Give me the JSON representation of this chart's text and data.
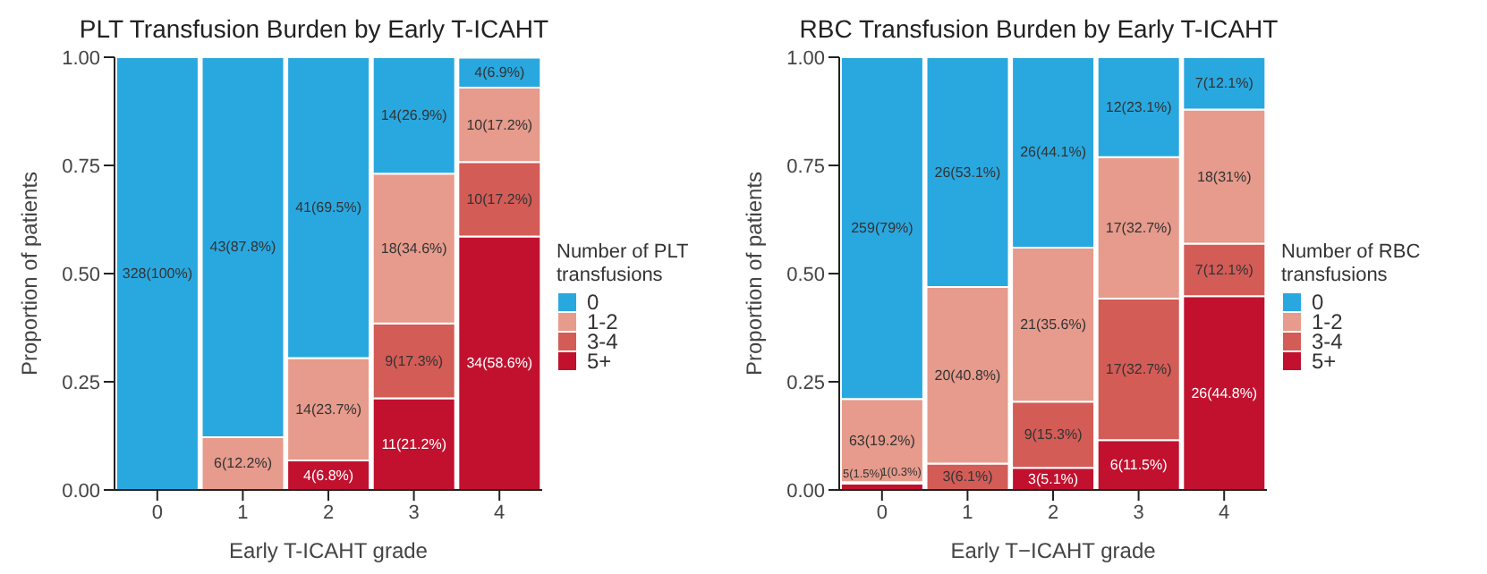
{
  "chart_data": [
    {
      "type": "bar",
      "title": "PLT Transfusion Burden by Early T-ICAHT",
      "xlabel": "Early T-ICAHT grade",
      "ylabel": "Proportion of patients",
      "legend_title": "Number of PLT transfusions",
      "categories": [
        "0",
        "1",
        "2",
        "3",
        "4"
      ],
      "stacked": true,
      "ylim": [
        0,
        1
      ],
      "yticks": [
        {
          "value": 0,
          "label": "0.00"
        },
        {
          "value": 0.25,
          "label": "0.25"
        },
        {
          "value": 0.5,
          "label": "0.50"
        },
        {
          "value": 0.75,
          "label": "0.75"
        },
        {
          "value": 1,
          "label": "1.00"
        }
      ],
      "grid": false,
      "legend": "right",
      "series": [
        {
          "name": "5+",
          "color": "#c1112f",
          "values": [
            0,
            0,
            0.068,
            0.212,
            0.586
          ],
          "value_labels": [
            null,
            null,
            "4(6.8%)",
            "11(21.2%)",
            "34(58.6%)"
          ]
        },
        {
          "name": "3-4",
          "color": "#d35c57",
          "values": [
            0,
            0,
            0,
            0.173,
            0.172
          ],
          "value_labels": [
            null,
            null,
            null,
            "9(17.3%)",
            "10(17.2%)"
          ]
        },
        {
          "name": "1-2",
          "color": "#e69b8c",
          "values": [
            0,
            0.122,
            0.237,
            0.346,
            0.172
          ],
          "value_labels": [
            null,
            "6(12.2%)",
            "14(23.7%)",
            "18(34.6%)",
            "10(17.2%)"
          ]
        },
        {
          "name": "0",
          "color": "#29a8e0",
          "values": [
            1,
            0.878,
            0.695,
            0.269,
            0.069
          ],
          "value_labels": [
            "328(100%)",
            "43(87.8%)",
            "41(69.5%)",
            "14(26.9%)",
            "4(6.9%)"
          ]
        }
      ]
    },
    {
      "type": "bar",
      "title": "RBC Transfusion Burden by Early T-ICAHT",
      "xlabel": "Early T−ICAHT grade",
      "ylabel": "Proportion of patients",
      "legend_title": "Number of RBC transfusions",
      "categories": [
        "0",
        "1",
        "2",
        "3",
        "4"
      ],
      "stacked": true,
      "ylim": [
        0,
        1
      ],
      "yticks": [
        {
          "value": 0,
          "label": "0.00"
        },
        {
          "value": 0.25,
          "label": "0.25"
        },
        {
          "value": 0.5,
          "label": "0.50"
        },
        {
          "value": 0.75,
          "label": "0.75"
        },
        {
          "value": 1,
          "label": "1.00"
        }
      ],
      "grid": false,
      "legend": "right",
      "series": [
        {
          "name": "5+",
          "color": "#c1112f",
          "values": [
            0.015,
            0,
            0.051,
            0.115,
            0.448
          ],
          "value_labels": [
            "5(1.5%)",
            null,
            "3(5.1%)",
            "6(11.5%)",
            "26(44.8%)"
          ]
        },
        {
          "name": "3-4",
          "color": "#d35c57",
          "values": [
            0.003,
            0.061,
            0.153,
            0.327,
            0.121
          ],
          "value_labels": [
            "1(0.3%)",
            "3(6.1%)",
            "9(15.3%)",
            "17(32.7%)",
            "7(12.1%)"
          ]
        },
        {
          "name": "1-2",
          "color": "#e69b8c",
          "values": [
            0.192,
            0.408,
            0.356,
            0.327,
            0.31
          ],
          "value_labels": [
            "63(19.2%)",
            "20(40.8%)",
            "21(35.6%)",
            "17(32.7%)",
            "18(31%)"
          ]
        },
        {
          "name": "0",
          "color": "#29a8e0",
          "values": [
            0.79,
            0.531,
            0.441,
            0.231,
            0.121
          ],
          "value_labels": [
            "259(79%)",
            "26(53.1%)",
            "26(44.1%)",
            "12(23.1%)",
            "7(12.1%)"
          ]
        }
      ]
    }
  ]
}
